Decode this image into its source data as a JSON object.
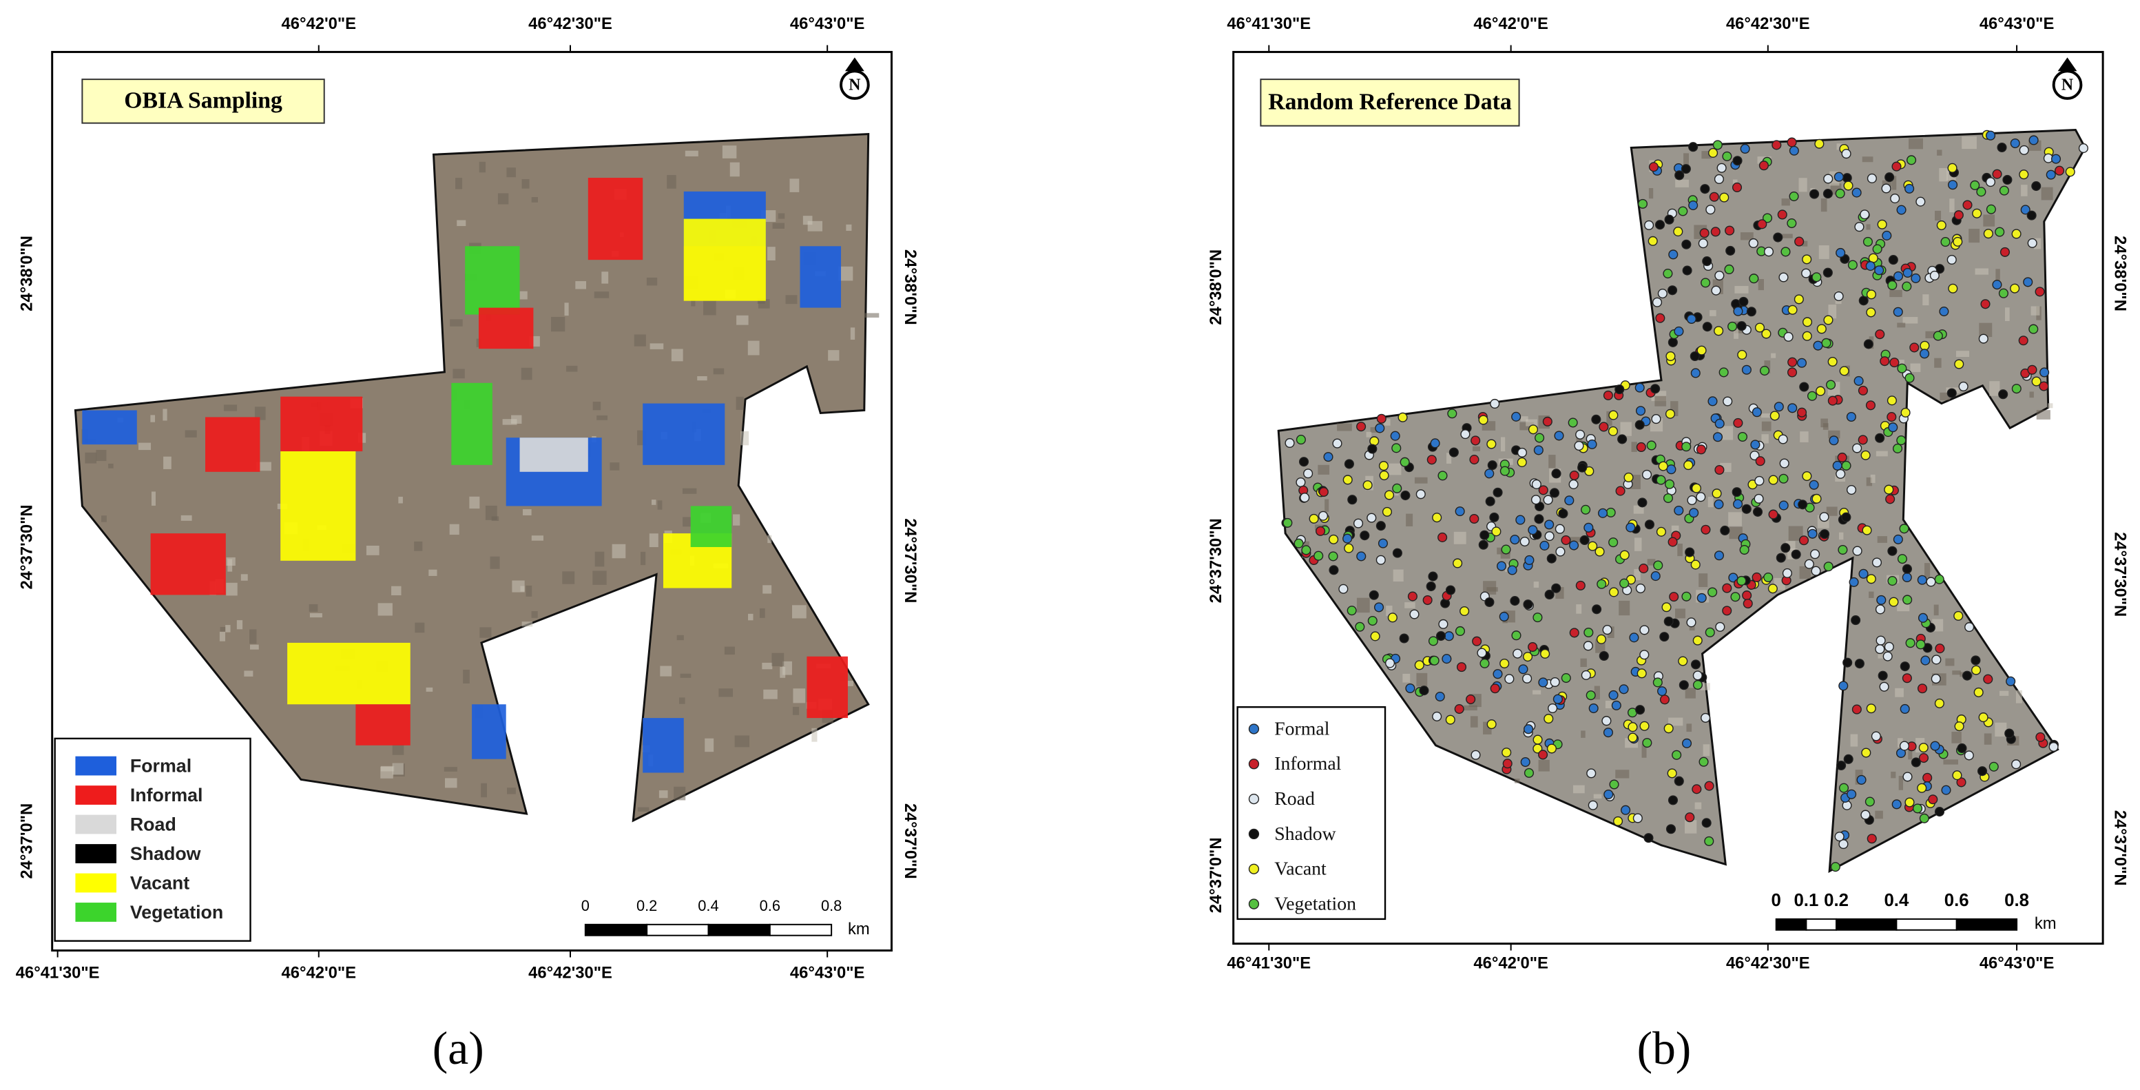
{
  "panels": [
    {
      "caption": "(a)",
      "title": "OBIA Sampling",
      "north": "N",
      "top_labels": [
        "46°42'0\"E",
        "46°42'30\"E",
        "46°43'0\"E"
      ],
      "bottom_labels": [
        "46°41'30\"E",
        "46°42'0\"E",
        "46°42'30\"E",
        "46°43'0\"E"
      ],
      "left_labels": [
        "24°38'0\"N",
        "24°37'30\"N",
        "24°37'0\"N"
      ],
      "right_labels": [
        "24°38'0\"N",
        "24°37'30\"N",
        "24°37'0\"N"
      ],
      "legend": [
        {
          "label": "Formal",
          "color": "#1e5fdc"
        },
        {
          "label": "Informal",
          "color": "#ee1c1c"
        },
        {
          "label": "Road",
          "color": "#d9d9d9"
        },
        {
          "label": "Shadow",
          "color": "#000000"
        },
        {
          "label": "Vacant",
          "color": "#ffff00"
        },
        {
          "label": "Vegetation",
          "color": "#3cd42c"
        }
      ],
      "scale_ticks": [
        0,
        0.2,
        0.4,
        0.6,
        0.8
      ],
      "scale_unit": "km"
    },
    {
      "caption": "(b)",
      "title": "Random Reference Data",
      "north": "N",
      "top_labels": [
        "46°41'30\"E",
        "46°42'0\"E",
        "46°42'30\"E",
        "46°43'0\"E"
      ],
      "bottom_labels": [
        "46°41'30\"E",
        "46°42'0\"E",
        "46°42'30\"E",
        "46°43'0\"E"
      ],
      "left_labels": [
        "24°38'0\"N",
        "24°37'30\"N",
        "24°37'0\"N"
      ],
      "right_labels": [
        "24°38'0\"N",
        "24°37'30\"N",
        "24°37'0\"N"
      ],
      "legend": [
        {
          "label": "Formal",
          "color": "#2e75c8"
        },
        {
          "label": "Informal",
          "color": "#c8202a"
        },
        {
          "label": "Road",
          "color": "#dde6ee"
        },
        {
          "label": "Shadow",
          "color": "#111111"
        },
        {
          "label": "Vacant",
          "color": "#f0f020"
        },
        {
          "label": "Vegetation",
          "color": "#55c040"
        }
      ],
      "scale_ticks": [
        0,
        0.1,
        0.2,
        0.4,
        0.6,
        0.8
      ],
      "scale_unit": "km"
    }
  ]
}
